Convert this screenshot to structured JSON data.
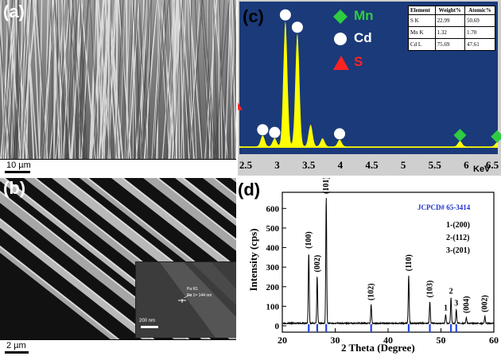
{
  "panel_a": {
    "label": "(a)",
    "scale_bar": "10 µm"
  },
  "panel_b": {
    "label": "(b)",
    "scale_bar": "2 µm",
    "inset": {
      "scale_bar": "200 nm",
      "pa_r1": "Pa R1",
      "pa_1": "Pa 1= 144 nm"
    }
  },
  "panel_c": {
    "label": "(c)",
    "legend": [
      {
        "name": "Mn",
        "marker": "diamond",
        "color": "#2ecc40"
      },
      {
        "name": "Cd",
        "marker": "circle",
        "color": "#ffffff"
      },
      {
        "name": "S",
        "marker": "triangle",
        "color": "#ff2222"
      }
    ],
    "table": {
      "headers": [
        "Element",
        "Weight%",
        "Atomic%"
      ],
      "rows": [
        [
          "S K",
          "22.99",
          "50.69"
        ],
        [
          "Mn K",
          "1.32",
          "1.70"
        ],
        [
          "Cd L",
          "75.69",
          "47.61"
        ]
      ]
    },
    "x_unit": "KeV",
    "colors": {
      "background": "#1a3a7a",
      "spectrum": "#ffff00"
    }
  },
  "chart_data": [
    {
      "type": "area",
      "panel": "(c)",
      "xlabel": "KeV",
      "ylabel": "",
      "xlim": [
        2.4,
        6.5
      ],
      "ylim": [
        0,
        1
      ],
      "x_ticks": [
        "2.5",
        "3",
        "3.5",
        "4",
        "4.5",
        "5",
        "5.5",
        "6",
        "6.5"
      ],
      "peaks": [
        {
          "x": 2.31,
          "y": 0.27,
          "marker": "S"
        },
        {
          "x": 2.77,
          "y": 0.08,
          "marker": "Cd"
        },
        {
          "x": 2.96,
          "y": 0.06,
          "marker": "Cd"
        },
        {
          "x": 3.13,
          "y": 0.92,
          "marker": "Cd"
        },
        {
          "x": 3.32,
          "y": 0.83,
          "marker": "Cd"
        },
        {
          "x": 3.53,
          "y": 0.16,
          "marker": ""
        },
        {
          "x": 3.72,
          "y": 0.06,
          "marker": ""
        },
        {
          "x": 3.99,
          "y": 0.05,
          "marker": "Cd"
        },
        {
          "x": 5.9,
          "y": 0.04,
          "marker": "Mn"
        },
        {
          "x": 6.49,
          "y": 0.03,
          "marker": "Mn"
        }
      ]
    },
    {
      "type": "line",
      "panel": "(d)",
      "xlabel": "2 Theta (Degree)",
      "ylabel": "Intensity (cps)",
      "xlim": [
        20,
        60
      ],
      "ylim": [
        0,
        650
      ],
      "x_ticks": [
        20,
        30,
        40,
        50,
        60
      ],
      "y_ticks": [
        0,
        100,
        200,
        300,
        400,
        500,
        600
      ],
      "peaks": [
        {
          "x": 25.0,
          "y": 370,
          "label": "(100)"
        },
        {
          "x": 26.6,
          "y": 250,
          "label": "(002)"
        },
        {
          "x": 28.3,
          "y": 655,
          "label": "(101)"
        },
        {
          "x": 36.8,
          "y": 105,
          "label": "(102)"
        },
        {
          "x": 43.9,
          "y": 255,
          "label": "(110)"
        },
        {
          "x": 47.9,
          "y": 120,
          "label": "(103)"
        },
        {
          "x": 50.9,
          "y": 55,
          "label": "1"
        },
        {
          "x": 51.9,
          "y": 140,
          "label": "2"
        },
        {
          "x": 52.9,
          "y": 80,
          "label": "3"
        },
        {
          "x": 54.8,
          "y": 40,
          "label": "(004)"
        },
        {
          "x": 58.3,
          "y": 45,
          "label": "(002)"
        }
      ],
      "reference_x": [
        25.0,
        26.6,
        28.3,
        36.8,
        43.9,
        47.9,
        51.9,
        52.9
      ],
      "annotations": {
        "jcpcd": "JCPCD# 65-3414",
        "legend": [
          "1-(200)",
          "2-(112)",
          "3-(201)"
        ]
      }
    }
  ]
}
